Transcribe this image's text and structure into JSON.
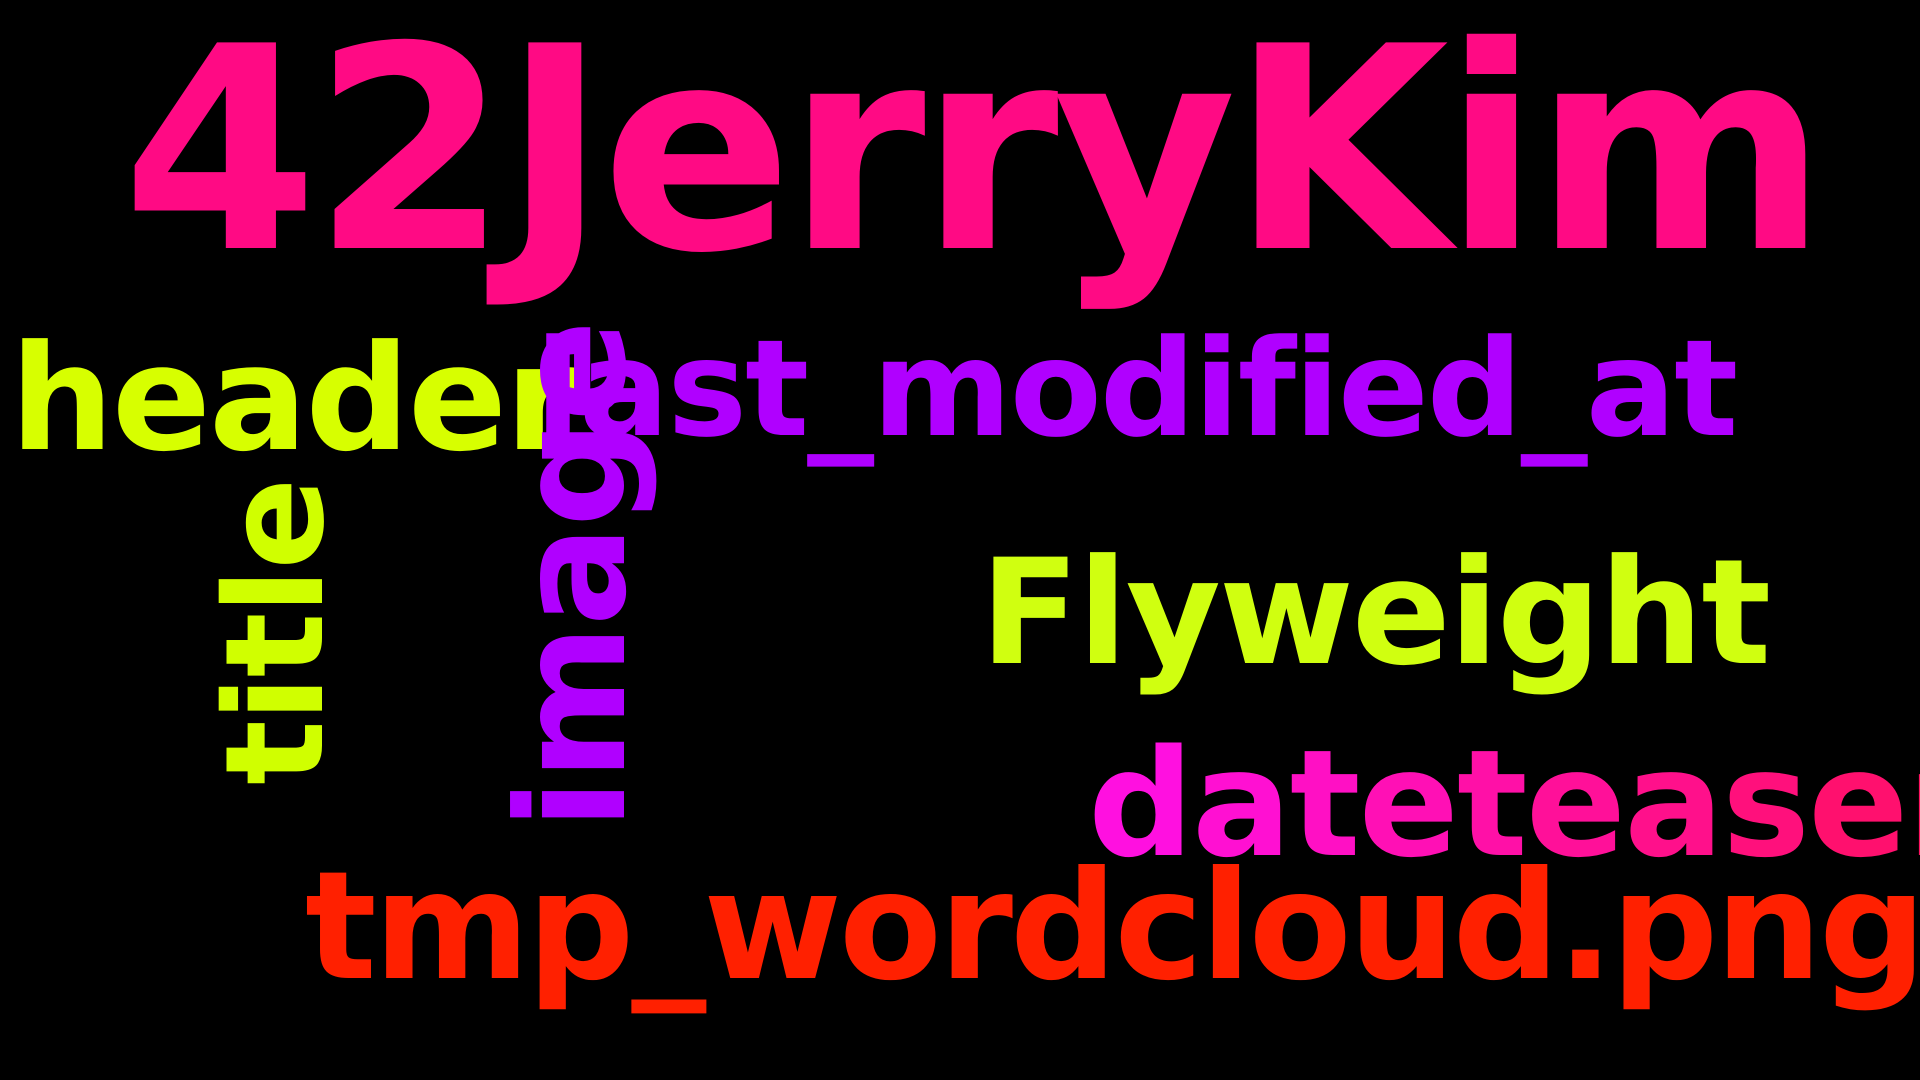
{
  "background_color": "#000000",
  "words": {
    "jerrykim": "42JerryKim",
    "header": "header",
    "last_modified_at": "last_modified_at",
    "title": "title",
    "image": "image",
    "flyweight": "Flyweight",
    "dateteaser": "dateteaser",
    "tmp_wordcloud": "tmp_wordcloud.png"
  },
  "colors": {
    "jerrykim": "#ff0a84",
    "header": "#d7ff00",
    "last_modified_at": "#b000ff",
    "title": "#d0ff00",
    "image": "#b000ff",
    "flyweight": "#d0ff10",
    "dateteaser_gradient": [
      "#ff10e0",
      "#ff1060"
    ],
    "tmp_wordcloud": "#ff2000"
  }
}
